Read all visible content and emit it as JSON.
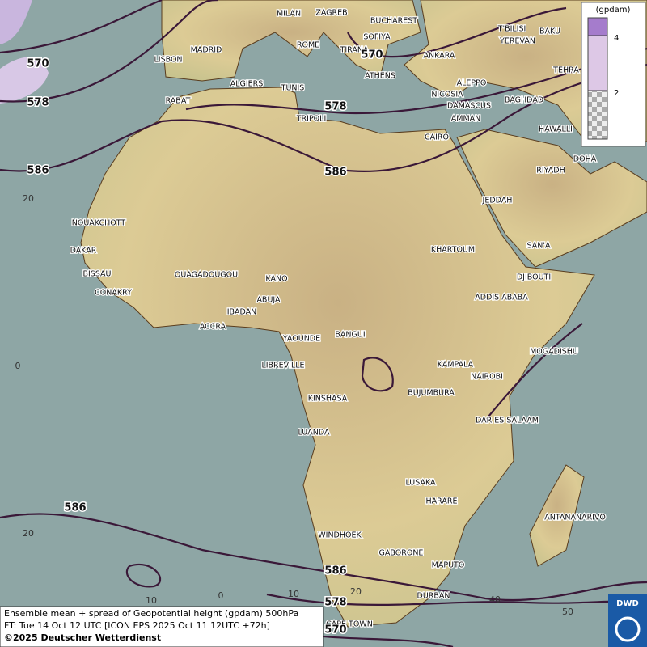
{
  "cities": [
    "MILAN",
    "ZAGREB",
    "BUCHAREST",
    "SOFIYA",
    "ROME",
    "TIRANA",
    "ATHENS",
    "ANKARA",
    "T'BILISI",
    "YEREVAN",
    "BAKU",
    "TEHRA",
    "MADRID",
    "LISBON",
    "ALGIERS",
    "TUNIS",
    "RABAT",
    "TRIPOLI",
    "NICOSIA",
    "ALEPPO",
    "BAGHDAD",
    "DAMASCUS",
    "AMMAN",
    "CAIRO",
    "HAWALLI",
    "DOHA",
    "RIYADH",
    "JEDDAH",
    "NOUAKCHOTT",
    "DAKAR",
    "BISSAU",
    "CONAKRY",
    "OUAGADOUGOU",
    "KANO",
    "KHARTOUM",
    "SAN'A",
    "DJIBOUTI",
    "ABUJA",
    "ADDIS ABABA",
    "IBADAN",
    "ACCRA",
    "YAOUNDE",
    "BANGUI",
    "MOGADISHU",
    "LIBREVILLE",
    "KAMPALA",
    "NAIROBI",
    "KINSHASA",
    "BUJUMBURA",
    "DAR ES SALAAM",
    "LUANDA",
    "LUSAKA",
    "HARARE",
    "ANTANANARIVO",
    "WINDHOEK",
    "GABORONE",
    "MAPUTO",
    "DURBAN",
    "CAPE TOWN"
  ],
  "contour_labels": [
    570,
    578,
    570,
    578,
    586,
    586,
    586,
    586,
    578,
    570
  ],
  "latitude_labels": [
    20,
    0,
    20
  ],
  "longitude_labels": [
    10,
    0,
    10,
    20,
    40,
    50
  ],
  "legend": {
    "unit": "(gpdam)",
    "ticks": [
      4,
      2
    ]
  },
  "caption": [
    "Ensemble mean + spread of Geopotential height (gpdam) 500hPa",
    "FT: Tue 14 Oct 12 UTC [ICON EPS 2025 Oct 11 12UTC +72h]",
    "©2025 Deutscher Wetterdienst"
  ],
  "logo": "DWD"
}
